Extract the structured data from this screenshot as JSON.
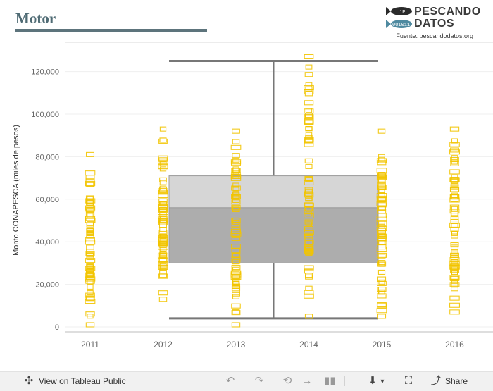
{
  "header": {
    "title": "Motor",
    "logo": {
      "name_line1": "PESCANDO",
      "name_line2": "DATOS",
      "fish1_text": "1P",
      "fish2_text": "001011",
      "source": "Fuente: pescandodatos.org"
    }
  },
  "colors": {
    "title": "#4f6b74",
    "points": "#f2c400",
    "box_upper": "#d6d6d6",
    "box_lower": "#adadad",
    "whisker": "#777777"
  },
  "chart_data": {
    "type": "scatter",
    "subtype": "strip plot with box plot overlay",
    "title": "",
    "xlabel": "",
    "ylabel": "Monto CONAPESCA (miles de pesos)",
    "categories": [
      "2011",
      "2012",
      "2013",
      "2014",
      "2015",
      "2016"
    ],
    "ylim": [
      0,
      130000
    ],
    "yticks": [
      0,
      20000,
      40000,
      60000,
      80000,
      100000,
      120000
    ],
    "ytick_labels": [
      "0",
      "20,000",
      "40,000",
      "60,000",
      "80,000",
      "100,000",
      "120,000"
    ],
    "grid": true,
    "legend": "none",
    "series_ranges": [
      {
        "category": "2011",
        "min": 1000,
        "max": 81000
      },
      {
        "category": "2012",
        "min": 13000,
        "max": 93000
      },
      {
        "category": "2013",
        "min": 1000,
        "max": 92000
      },
      {
        "category": "2014",
        "min": 5000,
        "max": 127000
      },
      {
        "category": "2015",
        "min": 5000,
        "max": 92000
      },
      {
        "category": "2016",
        "min": 7000,
        "max": 93000
      }
    ],
    "box": {
      "whisker_low": 4000,
      "q1": 30000,
      "median": 56000,
      "q3": 71000,
      "whisker_high": 125000
    }
  },
  "toolbar": {
    "view_label": "View on Tableau Public",
    "share_label": "Share"
  }
}
